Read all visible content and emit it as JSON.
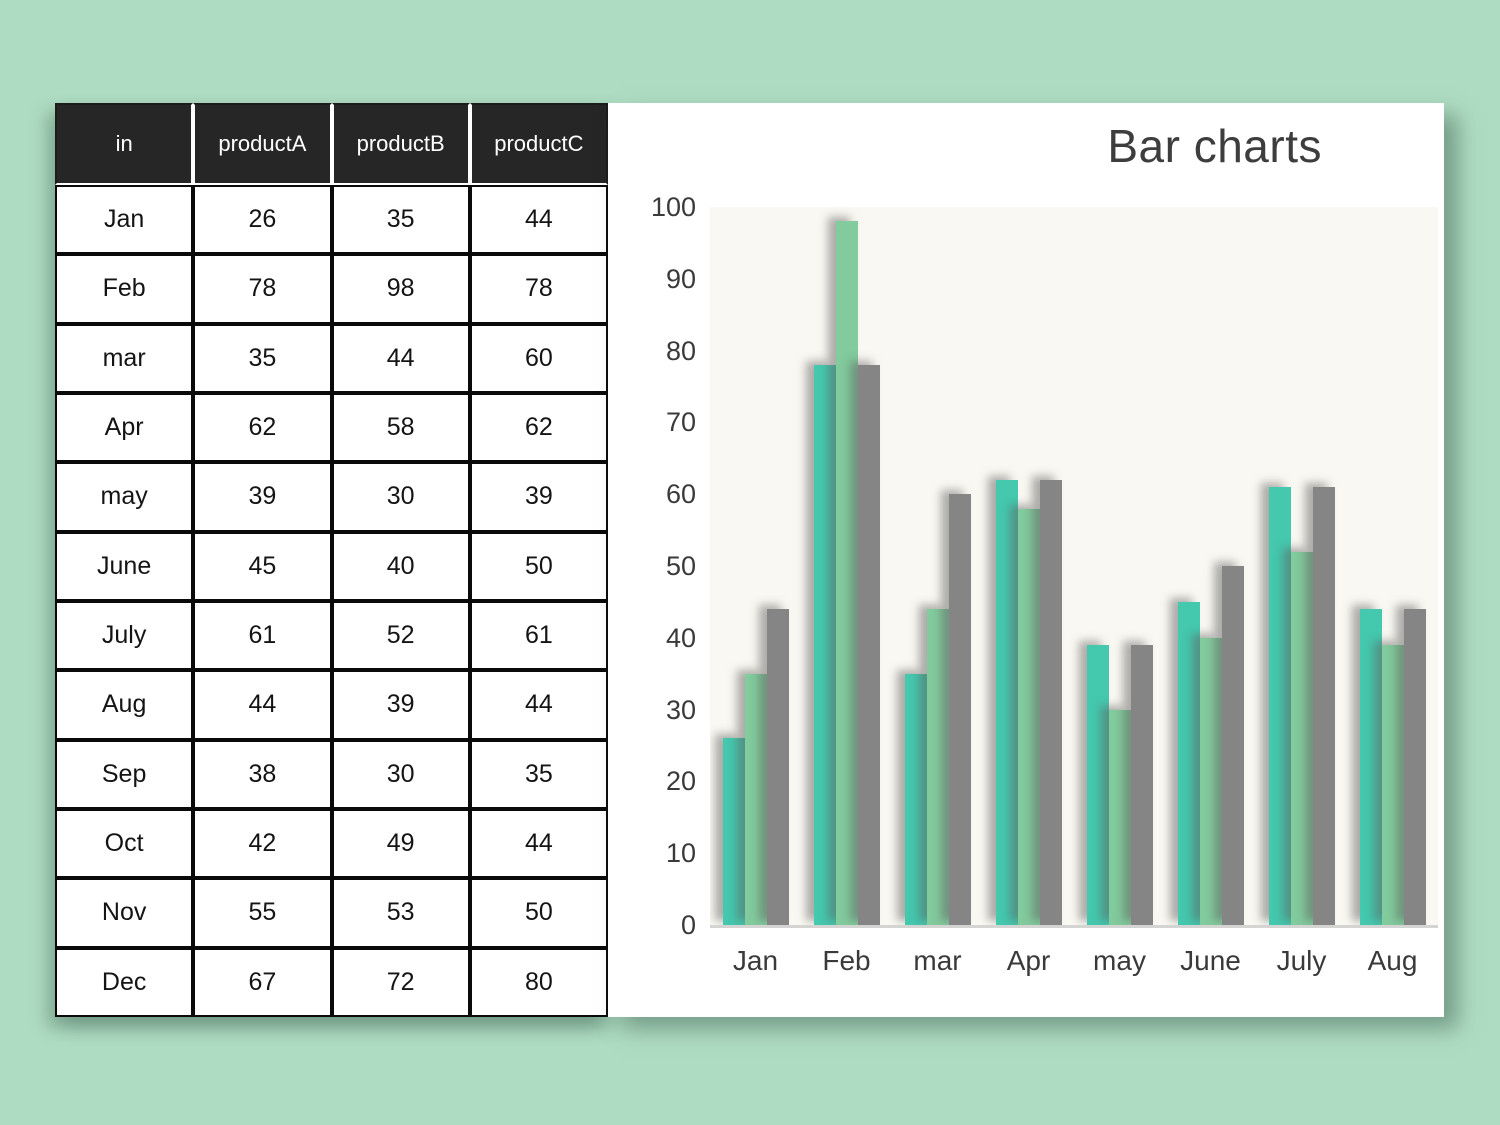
{
  "page_background": "#aedcc2",
  "table": {
    "headers": [
      "in",
      "productA",
      "productB",
      "productC"
    ],
    "rows": [
      {
        "label": "Jan",
        "values": [
          26,
          35,
          44
        ]
      },
      {
        "label": "Feb",
        "values": [
          78,
          98,
          78
        ]
      },
      {
        "label": "mar",
        "values": [
          35,
          44,
          60
        ]
      },
      {
        "label": "Apr",
        "values": [
          62,
          58,
          62
        ]
      },
      {
        "label": "may",
        "values": [
          39,
          30,
          39
        ]
      },
      {
        "label": "June",
        "values": [
          45,
          40,
          50
        ]
      },
      {
        "label": "July",
        "values": [
          61,
          52,
          61
        ]
      },
      {
        "label": "Aug",
        "values": [
          44,
          39,
          44
        ]
      },
      {
        "label": "Sep",
        "values": [
          38,
          30,
          35
        ]
      },
      {
        "label": "Oct",
        "values": [
          42,
          49,
          44
        ]
      },
      {
        "label": "Nov",
        "values": [
          55,
          53,
          50
        ]
      },
      {
        "label": "Dec",
        "values": [
          67,
          72,
          80
        ]
      }
    ]
  },
  "chart_data": {
    "type": "bar",
    "title": "Bar charts",
    "categories": [
      "Jan",
      "Feb",
      "mar",
      "Apr",
      "may",
      "June",
      "July",
      "Aug"
    ],
    "series": [
      {
        "name": "productA",
        "color": "#44c8ae",
        "values": [
          26,
          78,
          35,
          62,
          39,
          45,
          61,
          44
        ]
      },
      {
        "name": "productB",
        "color": "#82cb9d",
        "values": [
          35,
          98,
          44,
          58,
          30,
          40,
          52,
          39
        ]
      },
      {
        "name": "productC",
        "color": "#858585",
        "values": [
          44,
          78,
          60,
          62,
          39,
          50,
          61,
          44
        ]
      }
    ],
    "xlabel": "",
    "ylabel": "",
    "ylim": [
      0,
      100
    ],
    "yticks": [
      0,
      10,
      20,
      30,
      40,
      50,
      60,
      70,
      80,
      90,
      100
    ],
    "grid": false,
    "legend": "none",
    "plot_background": "#faf8f2"
  }
}
